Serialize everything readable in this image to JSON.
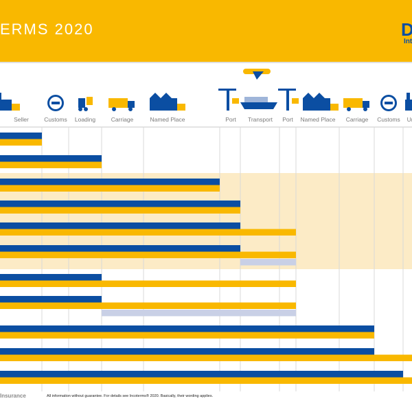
{
  "header": {
    "title": "ERMS 2020",
    "logo_text": "D",
    "logo_sub": "Int"
  },
  "footer": {
    "left_label": "Insurance",
    "note": "All information without guarantee. For details see Incoterms® 2020. Basically, their wording applies."
  },
  "colors": {
    "banner": "#f9b800",
    "cost_bar": "#0b4ea2",
    "risk_bar": "#f9b800",
    "insurance_bar": "#c9d0e6",
    "sea_band": "#fcebc6",
    "grid": "#d8d8d8"
  },
  "icons": [
    "factory-icon",
    "customs-seal-icon",
    "forklift-icon",
    "truck-icon",
    "warehouse-icon",
    "crane-icon",
    "airplane-icon",
    "ship-icon",
    "crane-icon",
    "warehouse-icon",
    "truck-icon",
    "customs-seal-icon",
    "factory-icon"
  ],
  "chart_data": {
    "type": "bar",
    "orientation": "horizontal",
    "categories": [
      "Seller",
      "Customs",
      "Loading",
      "Carriage",
      "Named Place",
      "Port",
      "Transport",
      "Port",
      "Named Place",
      "Carriage",
      "Customs",
      "Un"
    ],
    "rows": [
      {
        "cost_end": 1,
        "risk_end": 1
      },
      {
        "cost_end": 3,
        "risk_end": 3
      },
      {
        "cost_end": 5,
        "risk_end": 5
      },
      {
        "cost_end": 6,
        "risk_end": 6
      },
      {
        "cost_end": 6,
        "risk_end": 8
      },
      {
        "cost_end": 6,
        "risk_end": 8,
        "insurance": [
          6,
          8
        ]
      },
      {
        "cost_end": 3,
        "risk_end": 8
      },
      {
        "cost_end": 3,
        "risk_end": 8,
        "insurance": [
          3,
          8
        ]
      },
      {
        "cost_end": 10,
        "risk_end": 10
      },
      {
        "cost_end": 10,
        "risk_end": 12
      },
      {
        "cost_end": 11,
        "risk_end": 12
      }
    ],
    "sea_rows": [
      2,
      5
    ],
    "legend": "none",
    "grid": true
  }
}
